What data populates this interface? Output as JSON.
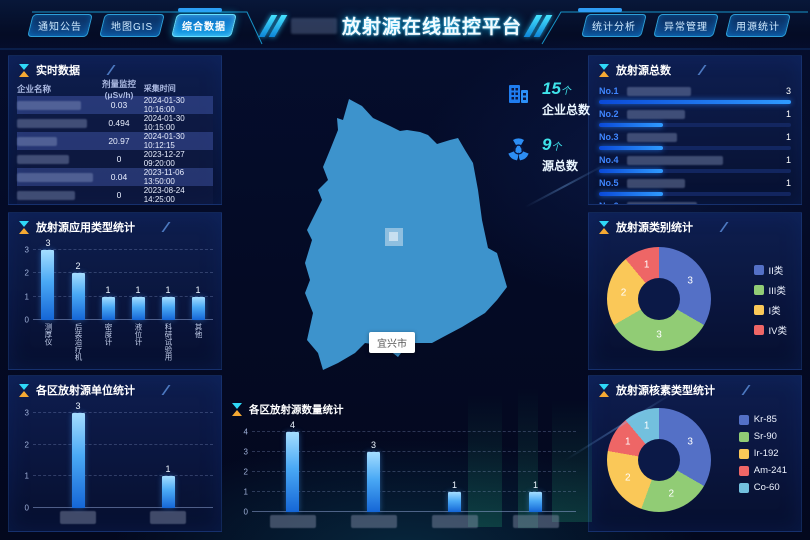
{
  "header": {
    "title": "放射源在线监控平台",
    "nav_left": [
      {
        "label": "通知公告",
        "active": false
      },
      {
        "label": "地图GIS",
        "active": false
      },
      {
        "label": "综合数据",
        "active": true
      }
    ],
    "nav_right": [
      {
        "label": "统计分析",
        "active": false
      },
      {
        "label": "异常管理",
        "active": false
      },
      {
        "label": "用源统计",
        "active": false
      }
    ]
  },
  "panels": {
    "realtime": {
      "title": "实时数据",
      "columns": [
        "企业名称",
        "剂量监控(μSv/h)",
        "采集时间"
      ],
      "company_redacted": true,
      "rows": [
        {
          "company": "",
          "dose": "0.03",
          "time": "2024-01-30 10:16:00"
        },
        {
          "company": "",
          "dose": "0.494",
          "time": "2024-01-30 10:15:00"
        },
        {
          "company": "",
          "dose": "20.97",
          "time": "2024-01-30 10:12:15"
        },
        {
          "company": "",
          "dose": "0",
          "time": "2023-12-27 09:20:00"
        },
        {
          "company": "",
          "dose": "0.04",
          "time": "2023-11-06 13:50:00"
        },
        {
          "company": "",
          "dose": "0",
          "time": "2023-08-24 14:25:00"
        }
      ]
    }
  },
  "map": {
    "tooltip": "宜兴市",
    "stats": [
      {
        "value": "15",
        "unit": "个",
        "label": "企业总数",
        "icon": "building-icon"
      },
      {
        "value": "9",
        "unit": "个",
        "label": "源总数",
        "icon": "radiation-icon"
      }
    ]
  },
  "chart_data": [
    {
      "id": "app_type",
      "type": "bar",
      "title": "放射源应用类型统计",
      "categories": [
        "测厚仪",
        "后装治疗机",
        "密度计",
        "液位计",
        "科研试验用",
        "其他"
      ],
      "values": [
        3,
        2,
        1,
        1,
        1,
        1
      ],
      "ylim": [
        0,
        3
      ],
      "yticks": [
        0,
        1,
        2,
        3
      ],
      "grid": "dashed",
      "x_labels_redacted": false
    },
    {
      "id": "district_units",
      "type": "bar",
      "title": "各区放射源单位统计",
      "categories": [
        "",
        ""
      ],
      "values": [
        3,
        1
      ],
      "ylim": [
        0,
        3
      ],
      "yticks": [
        0,
        1,
        2,
        3
      ],
      "grid": "dashed",
      "x_labels_redacted": true
    },
    {
      "id": "district_sources",
      "type": "bar",
      "title": "各区放射源数量统计",
      "categories": [
        "",
        "",
        "",
        ""
      ],
      "values": [
        4,
        3,
        1,
        1
      ],
      "ylim": [
        0,
        4
      ],
      "yticks": [
        0,
        1,
        2,
        3,
        4
      ],
      "grid": "dashed",
      "x_labels_redacted": true
    },
    {
      "id": "source_rank",
      "type": "bar",
      "title": "放射源总数",
      "names_redacted": true,
      "items": [
        {
          "rank": "No.1",
          "name": "",
          "value": 3
        },
        {
          "rank": "No.2",
          "name": "",
          "value": 1
        },
        {
          "rank": "No.3",
          "name": "",
          "value": 1
        },
        {
          "rank": "No.4",
          "name": "",
          "value": 1
        },
        {
          "rank": "No.5",
          "name": "",
          "value": 1
        },
        {
          "rank": "No.6",
          "name": "",
          "value": null
        }
      ]
    },
    {
      "id": "category",
      "type": "pie",
      "title": "放射源类别统计",
      "legend_position": "right",
      "series": [
        {
          "label": "II类",
          "value": 3,
          "color": "#5470c6"
        },
        {
          "label": "III类",
          "value": 3,
          "color": "#91cc75"
        },
        {
          "label": "I类",
          "value": 2,
          "color": "#fac858"
        },
        {
          "label": "IV类",
          "value": 1,
          "color": "#ee6666"
        }
      ]
    },
    {
      "id": "nuclide",
      "type": "pie",
      "title": "放射源核素类型统计",
      "legend_position": "right",
      "series": [
        {
          "label": "Kr-85",
          "value": 3,
          "color": "#5470c6"
        },
        {
          "label": "Sr-90",
          "value": 2,
          "color": "#91cc75"
        },
        {
          "label": "Ir-192",
          "value": 2,
          "color": "#fac858"
        },
        {
          "label": "Am-241",
          "value": 1,
          "color": "#ee6666"
        },
        {
          "label": "Co-60",
          "value": 1,
          "color": "#73c0de"
        }
      ]
    }
  ],
  "colors": {
    "accent": "#00c8ff",
    "bar_top": "#a4ddff",
    "bar_bottom": "#1566d6",
    "rank_bar": "#2f9bff",
    "map_fill": "#3d93cc",
    "pie_palette": [
      "#5470c6",
      "#91cc75",
      "#fac858",
      "#ee6666",
      "#73c0de"
    ]
  }
}
